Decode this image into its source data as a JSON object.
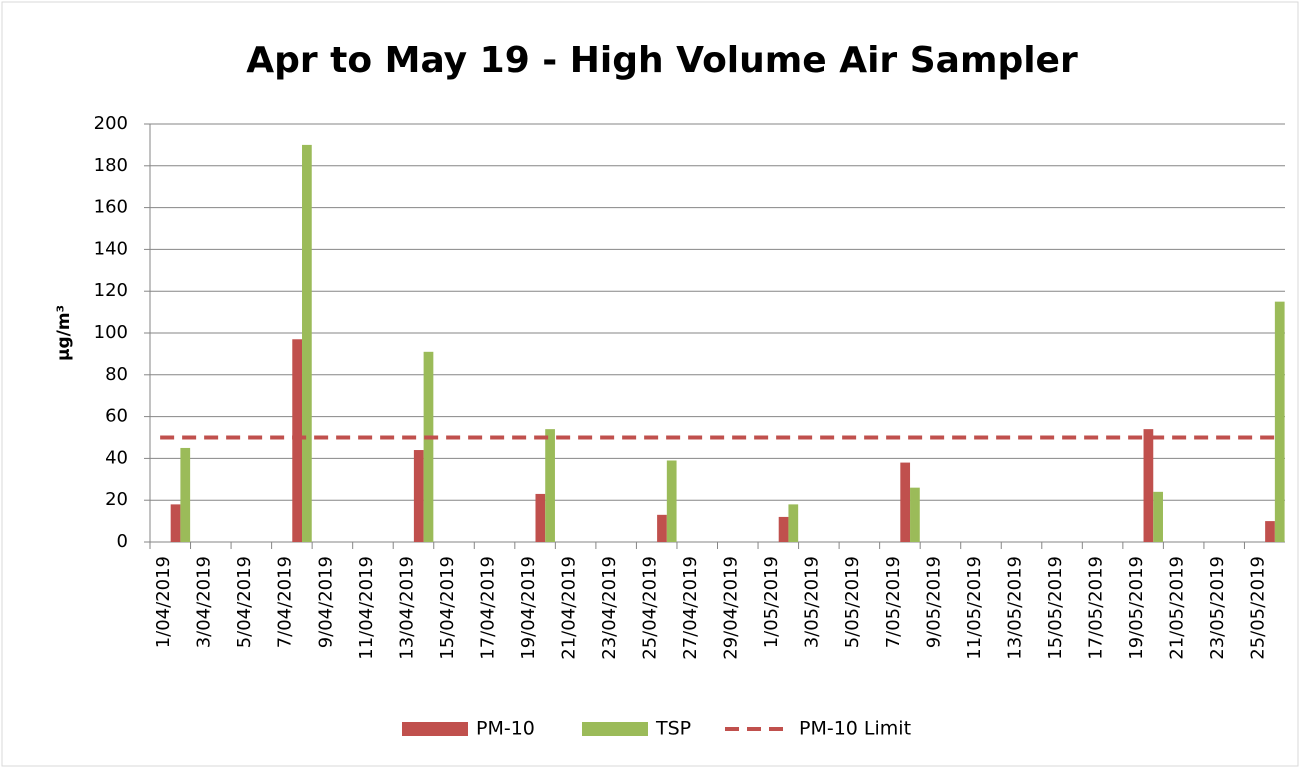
{
  "chart_data": {
    "type": "bar",
    "title": "Apr to May 19 - High Volume Air Sampler",
    "y_label": "µg/m³",
    "categories": [
      "1/04/2019",
      null,
      "3/04/2019",
      null,
      "5/04/2019",
      null,
      "7/04/2019",
      null,
      "9/04/2019",
      null,
      "11/04/2019",
      null,
      "13/04/2019",
      null,
      "15/04/2019",
      null,
      "17/04/2019",
      null,
      "19/04/2019",
      null,
      "21/04/2019",
      null,
      "23/04/2019",
      null,
      "25/04/2019",
      null,
      "27/04/2019",
      null,
      "29/04/2019",
      null,
      "1/05/2019",
      null,
      "3/05/2019",
      null,
      "5/05/2019",
      null,
      "7/05/2019",
      null,
      "9/05/2019",
      null,
      "11/05/2019",
      null,
      "13/05/2019",
      null,
      "15/05/2019",
      null,
      "17/05/2019",
      null,
      "19/05/2019",
      null,
      "21/05/2019",
      null,
      "23/05/2019",
      null,
      "25/05/2019",
      null
    ],
    "series": [
      {
        "name": "PM-10",
        "color": "#c0504d",
        "type": "bar",
        "values": [
          null,
          18,
          null,
          null,
          null,
          null,
          null,
          97,
          null,
          null,
          null,
          null,
          null,
          44,
          null,
          null,
          null,
          null,
          null,
          23,
          null,
          null,
          null,
          null,
          null,
          13,
          null,
          null,
          null,
          null,
          null,
          12,
          null,
          null,
          null,
          null,
          null,
          38,
          null,
          null,
          null,
          null,
          null,
          null,
          null,
          null,
          null,
          null,
          null,
          54,
          null,
          null,
          null,
          null,
          null,
          10
        ]
      },
      {
        "name": "TSP",
        "color": "#9bbb59",
        "type": "bar",
        "values": [
          null,
          45,
          null,
          null,
          null,
          null,
          null,
          190,
          null,
          null,
          null,
          null,
          null,
          91,
          null,
          null,
          null,
          null,
          null,
          54,
          null,
          null,
          null,
          null,
          null,
          39,
          null,
          null,
          null,
          null,
          null,
          18,
          null,
          null,
          null,
          null,
          null,
          26,
          null,
          null,
          null,
          null,
          null,
          null,
          null,
          null,
          null,
          null,
          null,
          24,
          null,
          null,
          null,
          null,
          null,
          115
        ]
      },
      {
        "name": "PM-10 Limit",
        "color": "#c0504d",
        "type": "line",
        "dashed": true,
        "values": [
          50,
          50,
          50,
          50,
          50,
          50,
          50,
          50,
          50,
          50,
          50,
          50,
          50,
          50,
          50,
          50,
          50,
          50,
          50,
          50,
          50,
          50,
          50,
          50,
          50,
          50,
          50,
          50,
          50,
          50,
          50,
          50,
          50,
          50,
          50,
          50,
          50,
          50,
          50,
          50,
          50,
          50,
          50,
          50,
          50,
          50,
          50,
          50,
          50,
          50,
          50,
          50,
          50,
          50,
          50,
          50
        ]
      }
    ],
    "ylim": [
      0,
      200
    ],
    "yticks": [
      0,
      20,
      40,
      60,
      80,
      100,
      120,
      140,
      160,
      180,
      200
    ],
    "grid": true,
    "legend": "bottom"
  }
}
